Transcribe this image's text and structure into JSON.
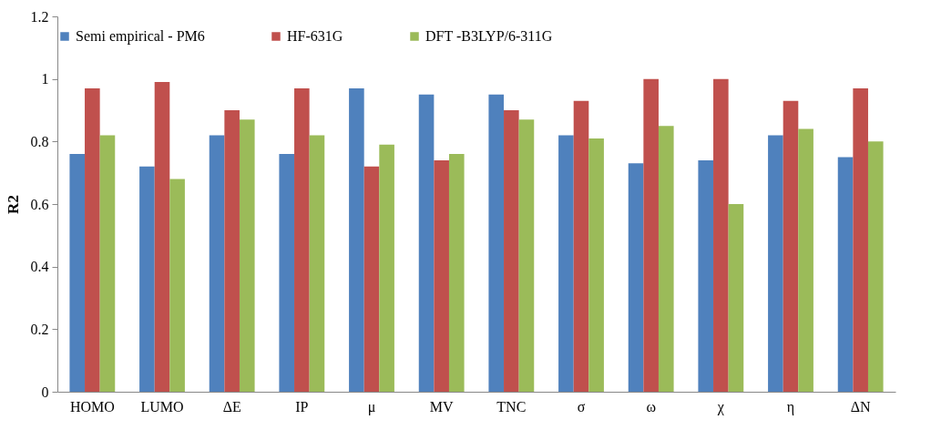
{
  "chart_data": {
    "type": "bar",
    "ylabel": "R2",
    "categories": [
      "HOMO",
      "LUMO",
      "ΔE",
      "IP",
      "μ",
      "MV",
      "TNC",
      "σ",
      "ω",
      "χ",
      "η",
      "ΔN"
    ],
    "series": [
      {
        "name": "Semi empirical - PM6",
        "color": "#4f81bd",
        "values": [
          0.76,
          0.72,
          0.82,
          0.76,
          0.97,
          0.95,
          0.95,
          0.82,
          0.73,
          0.74,
          0.82,
          0.75
        ]
      },
      {
        "name": "HF-631G",
        "color": "#c0504d",
        "values": [
          0.97,
          0.99,
          0.9,
          0.97,
          0.72,
          0.74,
          0.9,
          0.93,
          1.0,
          1.0,
          0.93,
          0.97
        ]
      },
      {
        "name": "DFT -B3LYP/6-311G",
        "color": "#9bbb59",
        "values": [
          0.82,
          0.68,
          0.87,
          0.82,
          0.79,
          0.76,
          0.87,
          0.81,
          0.85,
          0.6,
          0.84,
          0.8
        ]
      }
    ],
    "ylim": [
      0,
      1.2
    ],
    "yticks": [
      0,
      0.2,
      0.4,
      0.6,
      0.8,
      1,
      1.2
    ],
    "grid": false,
    "legend": "top"
  }
}
